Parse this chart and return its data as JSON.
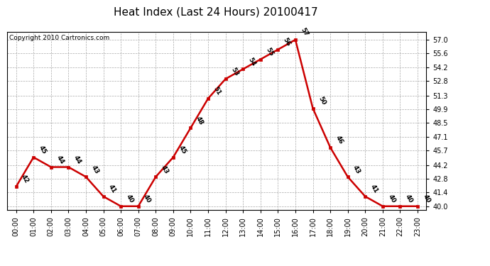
{
  "title": "Heat Index (Last 24 Hours) 20100417",
  "copyright": "Copyright 2010 Cartronics.com",
  "hours": [
    0,
    1,
    2,
    3,
    4,
    5,
    6,
    7,
    8,
    9,
    10,
    11,
    12,
    13,
    14,
    15,
    16,
    17,
    18,
    19,
    20,
    21,
    22,
    23
  ],
  "hour_labels": [
    "00:00",
    "01:00",
    "02:00",
    "03:00",
    "04:00",
    "05:00",
    "06:00",
    "07:00",
    "08:00",
    "09:00",
    "10:00",
    "11:00",
    "12:00",
    "13:00",
    "14:00",
    "15:00",
    "16:00",
    "17:00",
    "18:00",
    "19:00",
    "20:00",
    "21:00",
    "22:00",
    "23:00"
  ],
  "values": [
    42,
    45,
    44,
    44,
    43,
    41,
    40,
    40,
    43,
    45,
    48,
    51,
    53,
    54,
    55,
    56,
    57,
    50,
    46,
    43,
    41,
    40,
    40,
    40
  ],
  "line_color": "#cc0000",
  "marker_color": "#cc0000",
  "bg_color": "#ffffff",
  "grid_color": "#aaaaaa",
  "title_fontsize": 11,
  "copyright_fontsize": 6.5,
  "label_fontsize": 6.5,
  "tick_fontsize": 7,
  "ytick_values": [
    40.0,
    41.4,
    42.8,
    44.2,
    45.7,
    47.1,
    48.5,
    49.9,
    51.3,
    52.8,
    54.2,
    55.6,
    57.0
  ],
  "ylim_min": 39.6,
  "ylim_max": 57.8
}
